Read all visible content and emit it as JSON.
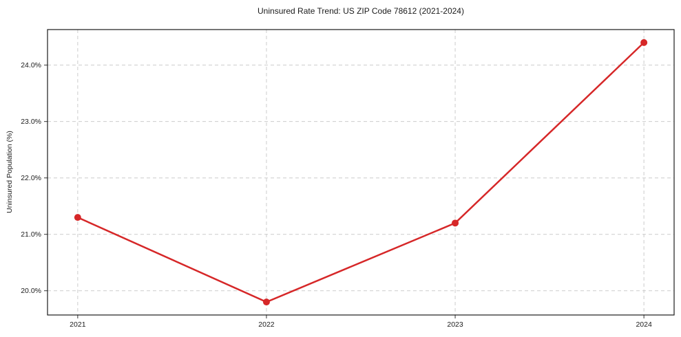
{
  "chart_data": {
    "type": "line",
    "title": "Uninsured Rate Trend: US ZIP Code 78612 (2021-2024)",
    "xlabel": "",
    "ylabel": "Uninsured Population (%)",
    "x": [
      2021,
      2022,
      2023,
      2024
    ],
    "x_tick_labels": [
      "2021",
      "2022",
      "2023",
      "2024"
    ],
    "series": [
      {
        "name": "Uninsured rate",
        "values": [
          21.3,
          19.8,
          21.2,
          24.4
        ]
      }
    ],
    "y_tick_values": [
      20.0,
      21.0,
      22.0,
      23.0,
      24.0
    ],
    "y_tick_labels": [
      "20.0%",
      "21.0%",
      "22.0%",
      "23.0%",
      "24.0%"
    ],
    "xlim": [
      2020.84,
      2024.16
    ],
    "ylim": [
      19.57,
      24.63
    ],
    "grid": true,
    "grid_style": "dashed",
    "legend_position": "none",
    "line_color": "#d62728",
    "marker": "circle",
    "marker_radius": 5,
    "line_width": 2.5
  }
}
